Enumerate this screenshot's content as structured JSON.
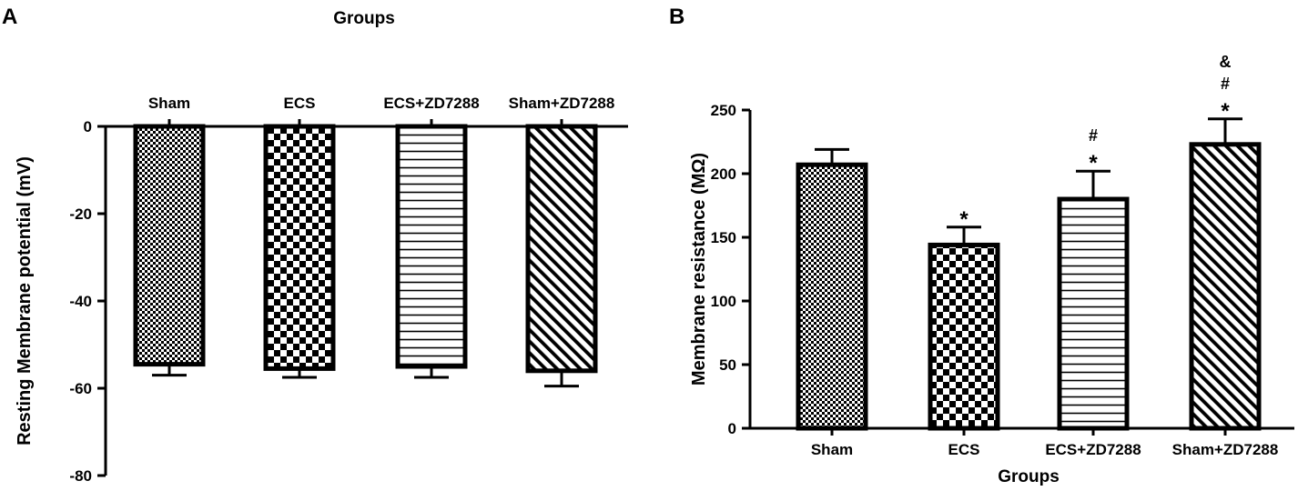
{
  "chart_data": [
    {
      "panel_label": "A",
      "type": "bar",
      "title": "",
      "xlabel": "Groups",
      "ylabel": "Resting Membrane potential (mV)",
      "categories": [
        "Sham",
        "ECS",
        "ECS+ZD7288",
        "Sham+ZD7288"
      ],
      "values": [
        -54.5,
        -55.5,
        -55,
        -56
      ],
      "errors": [
        2.5,
        2,
        2.5,
        3.5
      ],
      "patterns": [
        "fine-checker",
        "checker",
        "horizontal-lines",
        "diagonal-lines"
      ],
      "ylim": [
        -80,
        0
      ],
      "yticks": [
        0,
        -20,
        -40,
        -60,
        -80
      ],
      "ytick_labels": [
        "0",
        "-20",
        "-40",
        "-60",
        "-80"
      ],
      "x_axis_position": "top",
      "significance": [
        "",
        "",
        "",
        ""
      ]
    },
    {
      "panel_label": "B",
      "type": "bar",
      "title": "",
      "xlabel": "Groups",
      "ylabel": "Membrane resistance (MΩ)",
      "categories": [
        "Sham",
        "ECS",
        "ECS+ZD7288",
        "Sham+ZD7288"
      ],
      "values": [
        207,
        144,
        180,
        223
      ],
      "errors": [
        12,
        14,
        22,
        20
      ],
      "patterns": [
        "fine-checker",
        "checker",
        "horizontal-lines",
        "diagonal-lines"
      ],
      "ylim": [
        0,
        250
      ],
      "yticks": [
        0,
        50,
        100,
        150,
        200,
        250
      ],
      "ytick_labels": [
        "0",
        "50",
        "100",
        "150",
        "200",
        "250"
      ],
      "x_axis_position": "bottom",
      "significance": [
        [],
        [
          "*"
        ],
        [
          "#",
          "*"
        ],
        [
          "&",
          "#",
          "*"
        ]
      ]
    }
  ]
}
